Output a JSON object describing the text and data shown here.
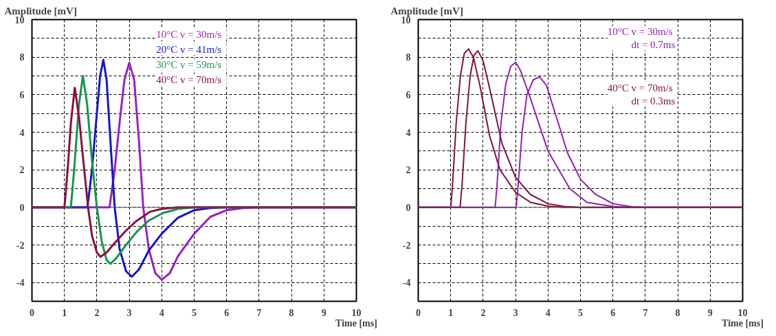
{
  "chart_data": [
    {
      "type": "line",
      "ylabel": "Amplitude [mV]",
      "xlabel": "Time [ms]",
      "xlim": [
        0,
        10
      ],
      "ylim": [
        -5,
        10
      ],
      "xticks": [
        0,
        1,
        2,
        3,
        4,
        5,
        6,
        7,
        8,
        9,
        10
      ],
      "yticks": [
        {
          "value": -5,
          "label": null
        },
        -4,
        {
          "value": -3,
          "label": null
        },
        -2,
        {
          "value": -1,
          "label": null
        },
        0,
        {
          "value": 1,
          "label": null
        },
        2,
        {
          "value": 3,
          "label": null
        },
        4,
        {
          "value": 5,
          "label": null
        },
        6,
        {
          "value": 7,
          "label": null
        },
        8,
        {
          "value": 9,
          "label": null
        },
        10
      ],
      "grid": true,
      "line_style": "solid",
      "marker": "none",
      "ref_lines": [
        {
          "axis": "y",
          "value": 0,
          "color": "#555555"
        }
      ],
      "series": [
        {
          "name": "10°C   v = 30m/s",
          "color": "#9b1fc4",
          "x": [
            0,
            2.39,
            2.55,
            2.7,
            2.85,
            3.0,
            3.15,
            3.3,
            3.43,
            3.6,
            3.8,
            4.0,
            4.25,
            4.5,
            5.0,
            5.5,
            6.0,
            6.5,
            7.0,
            10
          ],
          "values": [
            0,
            0,
            2,
            4.5,
            6.8,
            7.7,
            6.8,
            3.5,
            0,
            -2.2,
            -3.5,
            -3.85,
            -3.5,
            -2.6,
            -1.4,
            -0.5,
            -0.15,
            -0.03,
            0,
            0
          ]
        },
        {
          "name": "20°C   v = 41m/s",
          "color": "#1414d2",
          "x": [
            0,
            1.71,
            1.85,
            2.0,
            2.1,
            2.2,
            2.3,
            2.42,
            2.55,
            2.7,
            2.9,
            3.08,
            3.3,
            3.6,
            4.0,
            4.5,
            5.0,
            5.5,
            6.0,
            10
          ],
          "values": [
            0,
            0,
            2,
            5,
            7,
            7.86,
            6.8,
            3.5,
            0,
            -2.2,
            -3.4,
            -3.69,
            -3.3,
            -2.3,
            -1.4,
            -0.55,
            -0.15,
            -0.03,
            0,
            0
          ]
        },
        {
          "name": "30°C   v = 59m/s",
          "color": "#14964a",
          "x": [
            0,
            1.2,
            1.3,
            1.45,
            1.57,
            1.7,
            1.85,
            2.0,
            2.15,
            2.3,
            2.42,
            2.6,
            2.9,
            3.23,
            3.6,
            4.04,
            4.5,
            5.0,
            10
          ],
          "values": [
            0,
            0,
            2,
            5.5,
            7.0,
            5.5,
            2.5,
            0,
            -1.8,
            -2.8,
            -3.0,
            -2.7,
            -2.0,
            -1.3,
            -0.7,
            -0.3,
            -0.08,
            0,
            0
          ]
        },
        {
          "name": "40°C   v = 70m/s",
          "color": "#8b0f3c",
          "x": [
            0,
            1.0,
            1.1,
            1.2,
            1.32,
            1.45,
            1.6,
            1.73,
            1.85,
            2.0,
            2.11,
            2.3,
            2.6,
            2.89,
            3.2,
            3.64,
            4.0,
            4.5,
            10
          ],
          "values": [
            0,
            0,
            2,
            4.5,
            6.37,
            4.8,
            2.2,
            0,
            -1.5,
            -2.4,
            -2.63,
            -2.4,
            -1.8,
            -1.25,
            -0.75,
            -0.23,
            -0.08,
            0,
            0
          ]
        }
      ]
    },
    {
      "type": "line",
      "ylabel": "Amplitude [mV]",
      "xlabel": "Time [ms]",
      "xlim": [
        0,
        10
      ],
      "ylim": [
        -5,
        10
      ],
      "xticks": [
        0,
        1,
        2,
        3,
        4,
        5,
        6,
        7,
        8,
        9,
        10
      ],
      "yticks": [
        {
          "value": -5,
          "label": null
        },
        -4,
        {
          "value": -3,
          "label": null
        },
        -2,
        {
          "value": -1,
          "label": null
        },
        0,
        {
          "value": 1,
          "label": null
        },
        2,
        {
          "value": 3,
          "label": null
        },
        4,
        {
          "value": 5,
          "label": null
        },
        6,
        {
          "value": 7,
          "label": null
        },
        8,
        {
          "value": 9,
          "label": null
        },
        10
      ],
      "grid": true,
      "line_style": "solid",
      "marker": "none",
      "ref_lines": [
        {
          "axis": "y",
          "value": 0,
          "color": "#555555"
        }
      ],
      "series": [
        {
          "name": "10°C   v = 30m/s\ndt =  0.7ms",
          "color": "#9020b0",
          "x": [
            0,
            2.37,
            2.43,
            2.55,
            2.7,
            2.85,
            3.0,
            3.15,
            3.46,
            4.0,
            4.67,
            5.2,
            6.0,
            6.5,
            10
          ],
          "values": [
            0,
            0,
            1.2,
            4.5,
            6.6,
            7.5,
            7.73,
            7.3,
            5.8,
            3.0,
            1.0,
            0.27,
            0.05,
            0,
            0
          ]
        },
        {
          "color": "#9020b0",
          "x": [
            0,
            3.02,
            3.08,
            3.2,
            3.35,
            3.55,
            3.74,
            3.95,
            4.27,
            4.6,
            5.0,
            5.46,
            6.0,
            6.6,
            7.0,
            10
          ],
          "values": [
            0,
            0,
            1.2,
            4,
            6,
            6.8,
            6.95,
            6.5,
            4.75,
            2.9,
            1.5,
            0.7,
            0.2,
            0.03,
            0,
            0
          ]
        },
        {
          "name": "40°C   v = 70m/s\ndt =  0.3ms",
          "color": "#7d1240",
          "x": [
            0,
            1.0,
            1.05,
            1.17,
            1.3,
            1.42,
            1.55,
            1.7,
            1.9,
            2.2,
            2.52,
            3.0,
            3.46,
            4.0,
            4.5,
            10
          ],
          "values": [
            0,
            0,
            1,
            4.5,
            7,
            8.2,
            8.44,
            8.0,
            6.5,
            3.8,
            2.0,
            0.8,
            0.27,
            0.07,
            0,
            0
          ]
        },
        {
          "color": "#7d1240",
          "x": [
            0,
            1.29,
            1.35,
            1.47,
            1.6,
            1.72,
            1.84,
            2.0,
            2.18,
            2.58,
            3.0,
            3.46,
            4.0,
            4.5,
            5.0,
            10
          ],
          "values": [
            0,
            0,
            1.2,
            4.5,
            7,
            8.1,
            8.34,
            7.8,
            6.5,
            3.4,
            1.6,
            0.68,
            0.2,
            0.05,
            0,
            0
          ]
        }
      ]
    }
  ]
}
